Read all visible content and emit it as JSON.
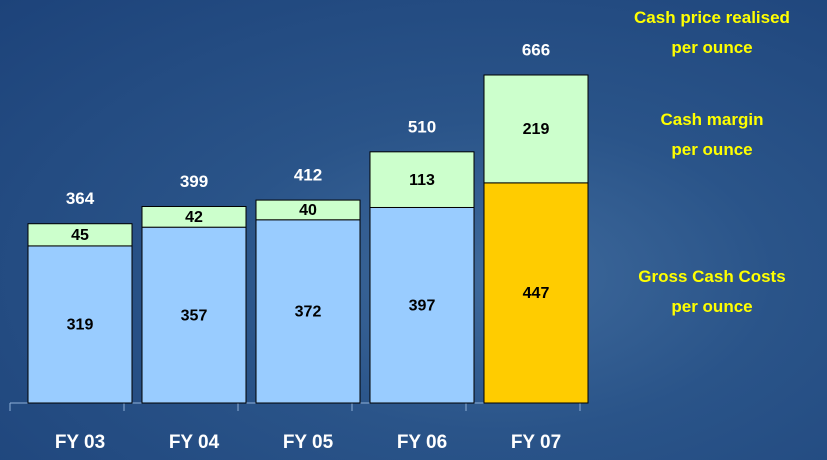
{
  "chart_data": {
    "type": "stacked-bar",
    "categories": [
      "FY 03",
      "FY 04",
      "FY 05",
      "FY 06",
      "FY 07"
    ],
    "series": [
      {
        "name": "Gross Cash Costs\nper ounce",
        "colors": [
          "#99ccff",
          "#99ccff",
          "#99ccff",
          "#99ccff",
          "#ffcc00"
        ],
        "values": [
          319,
          357,
          372,
          397,
          447
        ]
      },
      {
        "name": "Cash margin\nper ounce",
        "colors": [
          "#ccffcc",
          "#ccffcc",
          "#ccffcc",
          "#ccffcc",
          "#ccffcc"
        ],
        "values": [
          45,
          42,
          40,
          113,
          219
        ]
      }
    ],
    "totals": {
      "name": "Cash price realised\nper ounce",
      "values": [
        364,
        399,
        412,
        510,
        666
      ]
    }
  }
}
